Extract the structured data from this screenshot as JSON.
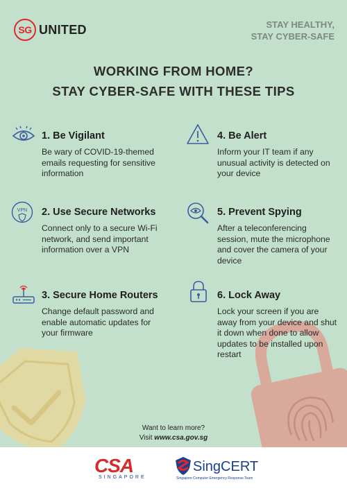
{
  "header": {
    "logo_sg": "SG",
    "logo_united": "UNITED",
    "tagline_line1": "STAY HEALTHY,",
    "tagline_line2": "STAY CYBER-SAFE"
  },
  "headline": {
    "line1": "WORKING FROM HOME?",
    "line2": "STAY CYBER-SAFE WITH THESE TIPS"
  },
  "tips": [
    {
      "title": "1. Be Vigilant",
      "body": "Be wary of COVID-19-themed emails requesting for sensitive information",
      "icon": "eye-icon"
    },
    {
      "title": "2. Use Secure Networks",
      "body": "Connect only to a secure Wi-Fi network, and send important information over a VPN",
      "icon": "vpn-shield-icon"
    },
    {
      "title": "3. Secure Home Routers",
      "body": "Change default password and enable automatic updates for your firmware",
      "icon": "router-icon"
    },
    {
      "title": "4. Be Alert",
      "body": "Inform your IT team if any unusual activity is detected on your device",
      "icon": "warning-icon"
    },
    {
      "title": "5. Prevent Spying",
      "body": "After a teleconferencing session, mute the microphone and cover the camera of your device",
      "icon": "magnifier-eye-icon"
    },
    {
      "title": "6. Lock Away",
      "body": "Lock your screen if you are away from your device and shut it down when done to allow updates to be installed upon restart",
      "icon": "padlock-icon"
    }
  ],
  "footer": {
    "learn_line1": "Want to learn more?",
    "learn_prefix": "Visit ",
    "learn_url": "www.csa.gov.sg",
    "csa_logo": "CSA",
    "csa_sub": "SINGAPORE",
    "singcert_logo": "SingCERT",
    "singcert_sub": "Singapore Computer Emergency Response Team"
  },
  "colors": {
    "panel_bg": "#c3e0cc",
    "brand_red": "#e2262f",
    "icon_blue": "#3c5c9e",
    "shield_yellow": "#e6d79b",
    "lock_red": "#d9a99c"
  }
}
